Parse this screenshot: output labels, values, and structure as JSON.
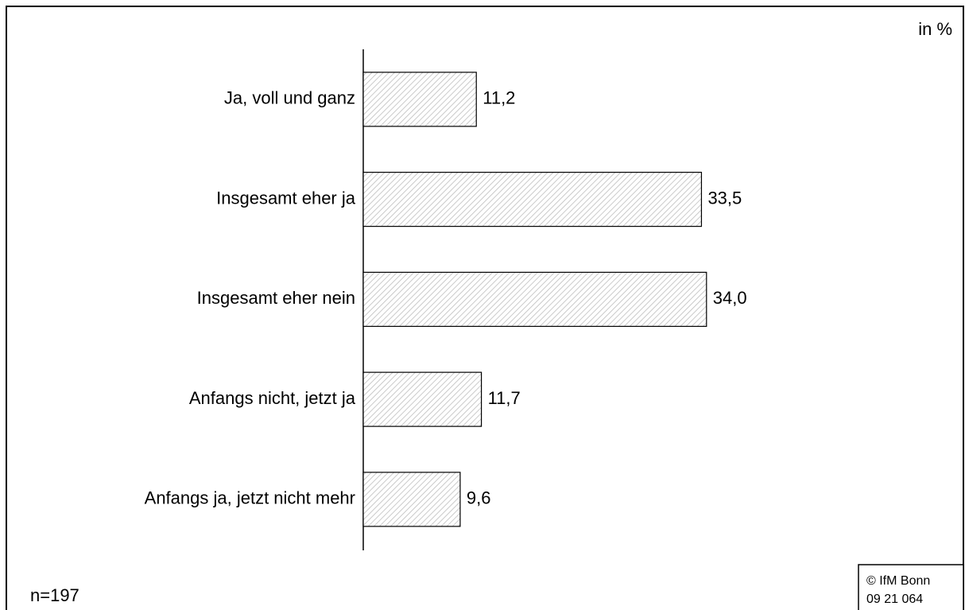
{
  "chart_data": {
    "type": "bar",
    "orientation": "horizontal",
    "unit_label": "in %",
    "note": "n=197",
    "source": [
      "© IfM Bonn",
      "09 21 064"
    ],
    "categories": [
      "Ja, voll und ganz",
      "Insgesamt eher ja",
      "Insgesamt eher nein",
      "Anfangs nicht, jetzt ja",
      "Anfangs ja, jetzt nicht mehr"
    ],
    "values": [
      11.2,
      33.5,
      34.0,
      11.7,
      9.6
    ],
    "value_labels": [
      "11,2",
      "33,5",
      "34,0",
      "11,7",
      "9,6"
    ],
    "color": "#bdbdbd"
  }
}
